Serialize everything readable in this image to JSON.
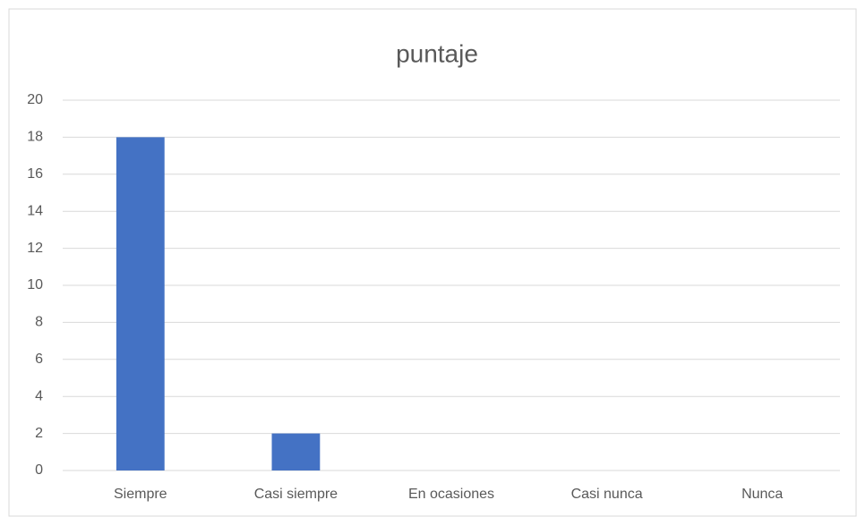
{
  "chart_data": {
    "type": "bar",
    "title": "puntaje",
    "categories": [
      "Siempre",
      "Casi siempre",
      "En ocasiones",
      "Casi nunca",
      "Nunca"
    ],
    "values": [
      18,
      2,
      0,
      0,
      0
    ],
    "color": "#4472c4",
    "ylim": [
      0,
      20
    ],
    "yticks": [
      0,
      2,
      4,
      6,
      8,
      10,
      12,
      14,
      16,
      18,
      20
    ],
    "grid": true
  }
}
